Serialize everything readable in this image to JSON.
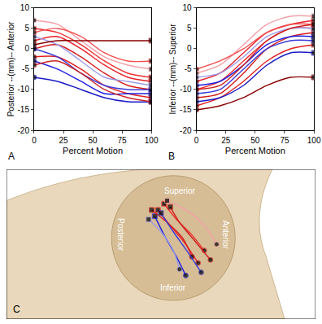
{
  "chart_data": [
    {
      "type": "line",
      "label": "A",
      "x_label": "Percent Motion",
      "y_label": "Posterior --(mm)-- Anterior",
      "x": [
        0,
        20,
        40,
        60,
        80,
        100
      ],
      "xlim": [
        0,
        100
      ],
      "xticks": [
        0,
        25,
        50,
        75,
        100
      ],
      "ylim": [
        -20,
        10
      ],
      "yticks": [
        -20,
        -15,
        -10,
        -5,
        0,
        5,
        10
      ],
      "grid": false,
      "marker": "ends",
      "series": [
        {
          "color": "#e8202a",
          "values": [
            2,
            3,
            0,
            -4,
            -7,
            -8
          ]
        },
        {
          "color": "#f03030",
          "values": [
            5,
            4,
            1,
            -3,
            -6,
            -7
          ]
        },
        {
          "color": "#d41c1c",
          "values": [
            0,
            1,
            -2,
            -6,
            -9,
            -10
          ]
        },
        {
          "color": "#f4a0a8",
          "values": [
            7,
            6,
            2,
            -2,
            -4,
            -5
          ]
        },
        {
          "color": "#e02020",
          "values": [
            -2,
            -2,
            -5,
            -9,
            -11,
            -12
          ]
        },
        {
          "color": "#2020e0",
          "values": [
            -3,
            -5,
            -8,
            -11,
            -11,
            -11
          ]
        },
        {
          "color": "#3a3ad8",
          "values": [
            0,
            -2,
            -6,
            -9,
            -10,
            -10
          ]
        },
        {
          "color": "#9a9ae8",
          "values": [
            3,
            1,
            -3,
            -7,
            -8,
            -9
          ]
        },
        {
          "color": "#f25050",
          "values": [
            4,
            5,
            3,
            -1,
            -3,
            -3
          ]
        },
        {
          "color": "#8b0000",
          "values": [
            1,
            2,
            2,
            2,
            2,
            2
          ]
        },
        {
          "color": "#1a1ac8",
          "values": [
            -7,
            -8,
            -10,
            -12,
            -13,
            -13
          ]
        },
        {
          "color": "#cc2222",
          "values": [
            -4,
            -3,
            -6,
            -10,
            -12,
            -13
          ]
        }
      ]
    },
    {
      "type": "line",
      "label": "B",
      "x_label": "Percent Motion",
      "y_label": "Inferior --(mm)-- Superior",
      "x": [
        0,
        20,
        40,
        60,
        80,
        100
      ],
      "xlim": [
        0,
        100
      ],
      "xticks": [
        0,
        25,
        50,
        75,
        100
      ],
      "ylim": [
        -20,
        10
      ],
      "yticks": [
        -20,
        -15,
        -10,
        -5,
        0,
        5,
        10
      ],
      "grid": false,
      "marker": "ends",
      "series": [
        {
          "color": "#e8202a",
          "values": [
            -8,
            -6,
            -1,
            4,
            6,
            7
          ]
        },
        {
          "color": "#f03030",
          "values": [
            -10,
            -8,
            -3,
            2,
            5,
            5
          ]
        },
        {
          "color": "#d41c1c",
          "values": [
            -12,
            -11,
            -6,
            0,
            3,
            4
          ]
        },
        {
          "color": "#f4a0a8",
          "values": [
            -6,
            -4,
            1,
            6,
            8,
            8
          ]
        },
        {
          "color": "#e02020",
          "values": [
            -14,
            -12,
            -8,
            -3,
            0,
            1
          ]
        },
        {
          "color": "#2020e0",
          "values": [
            -9,
            -8,
            -4,
            1,
            3,
            3
          ]
        },
        {
          "color": "#3a3ad8",
          "values": [
            -11,
            -10,
            -5,
            0,
            2,
            2
          ]
        },
        {
          "color": "#9a9ae8",
          "values": [
            -7,
            -6,
            -2,
            3,
            5,
            5
          ]
        },
        {
          "color": "#f25050",
          "values": [
            -5,
            -3,
            0,
            4,
            6,
            6
          ]
        },
        {
          "color": "#8b0000",
          "values": [
            -15,
            -14,
            -12,
            -9,
            -7,
            -7
          ]
        },
        {
          "color": "#1a1ac8",
          "values": [
            -13,
            -12,
            -9,
            -4,
            -1,
            -1
          ]
        },
        {
          "color": "#cc2222",
          "values": [
            -10,
            -9,
            -4,
            2,
            5,
            6
          ]
        }
      ]
    },
    {
      "type": "line",
      "label": "C",
      "annotations": [
        "Superior",
        "Posterior",
        "Anterior",
        "Inferior"
      ],
      "xlim": [
        0,
        100
      ],
      "ylim": [
        0,
        48
      ],
      "tick_labels": false,
      "grid": false,
      "marker": "ends",
      "series": [
        {
          "color": "#e8202a",
          "x": [
            62,
            58,
            53,
            49
          ],
          "values": [
            18,
            24,
            30,
            35
          ]
        },
        {
          "color": "#f03030",
          "x": [
            64,
            60,
            55,
            51
          ],
          "values": [
            22,
            27,
            32,
            37
          ]
        },
        {
          "color": "#2020e0",
          "x": [
            58,
            55,
            51,
            48
          ],
          "values": [
            14,
            20,
            27,
            33
          ]
        },
        {
          "color": "#f4a0a8",
          "x": [
            68,
            64,
            58,
            52
          ],
          "values": [
            24,
            30,
            35,
            38
          ]
        },
        {
          "color": "#d41c1c",
          "x": [
            60,
            57,
            52,
            47
          ],
          "values": [
            20,
            26,
            31,
            35
          ]
        },
        {
          "color": "#9a9ae8",
          "x": [
            56,
            54,
            50,
            46
          ],
          "values": [
            16,
            22,
            28,
            32
          ]
        },
        {
          "color": "#3a3ad8",
          "x": [
            63,
            59,
            54,
            50
          ],
          "values": [
            15,
            21,
            28,
            34
          ]
        },
        {
          "color": "#cc2222",
          "x": [
            66,
            61,
            56,
            53
          ],
          "values": [
            19,
            25,
            31,
            36
          ]
        }
      ]
    }
  ]
}
